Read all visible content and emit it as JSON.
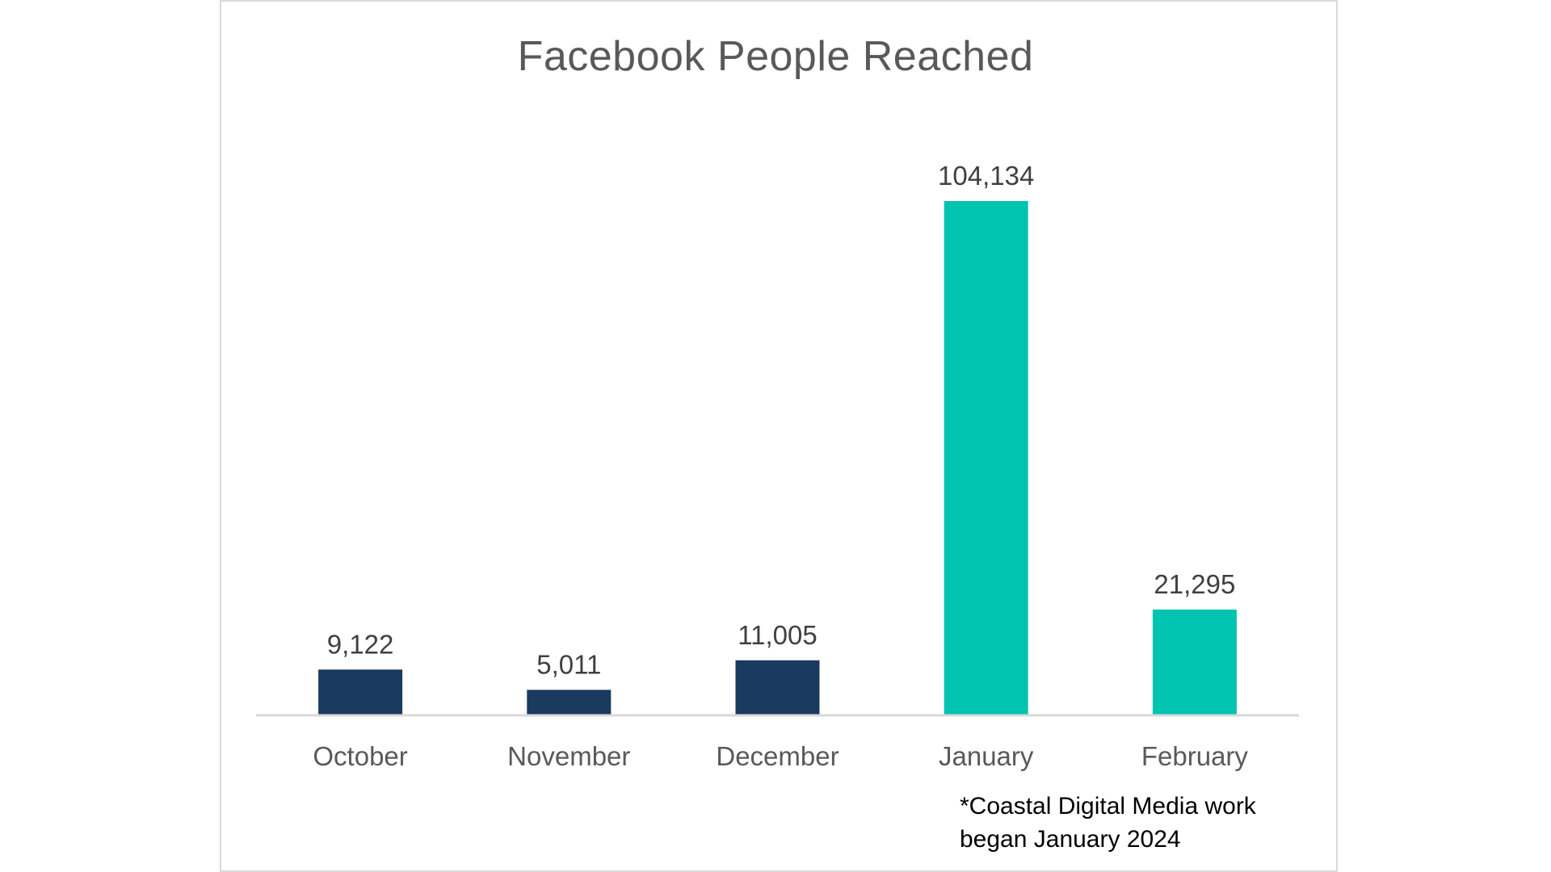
{
  "chart_data": {
    "type": "bar",
    "title": "Facebook People Reached",
    "categories": [
      "October",
      "November",
      "December",
      "January",
      "February"
    ],
    "values": [
      9122,
      5011,
      11005,
      104134,
      21295
    ],
    "value_labels": [
      "9,122",
      "5,011",
      "11,005",
      "104,134",
      "21,295"
    ],
    "colors": [
      "#1a3a60",
      "#1a3a60",
      "#1a3a60",
      "#00c4b0",
      "#00c4b0"
    ],
    "xlabel": "",
    "ylabel": "",
    "ylim": [
      0,
      105000
    ],
    "grid": false,
    "legend": "none"
  },
  "footnote": {
    "line1": "*Coastal Digital Media work",
    "line2": "began January 2024"
  },
  "colors": {
    "pre_engagement": "#1a3a60",
    "post_engagement": "#00c4b0",
    "axis": "#d9d9d9",
    "title": "#595959"
  }
}
